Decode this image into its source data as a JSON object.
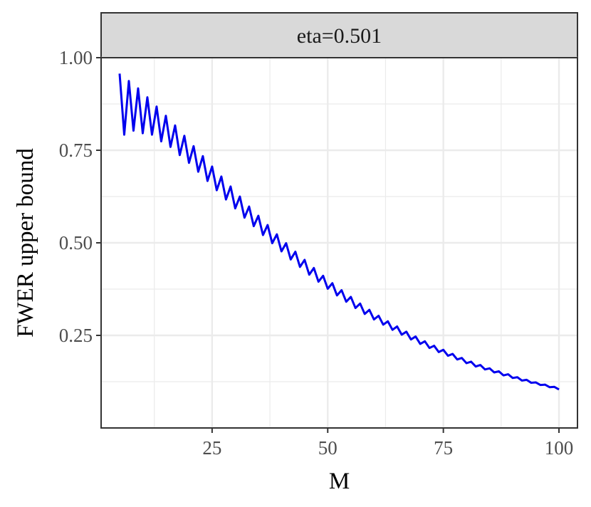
{
  "chart_data": {
    "type": "line",
    "facet_label": "eta=0.501",
    "xlabel": "M",
    "ylabel": "FWER upper bound",
    "xlim": [
      1,
      104
    ],
    "ylim": [
      0.0,
      1.0
    ],
    "x_ticks": [
      25,
      50,
      75,
      100
    ],
    "x_tick_labels": [
      "25",
      "50",
      "75",
      "100"
    ],
    "y_ticks": [
      0.25,
      0.5,
      0.75,
      1.0
    ],
    "y_tick_labels": [
      "0.25",
      "0.50",
      "0.75",
      "1.00"
    ],
    "grid": true,
    "series": [
      {
        "color": "#0000ee",
        "x": [
          5,
          6,
          7,
          8,
          9,
          10,
          11,
          12,
          13,
          14,
          15,
          16,
          17,
          18,
          19,
          20,
          21,
          22,
          23,
          24,
          25,
          26,
          27,
          28,
          29,
          30,
          31,
          32,
          33,
          34,
          35,
          36,
          37,
          38,
          39,
          40,
          41,
          42,
          43,
          44,
          45,
          46,
          47,
          48,
          49,
          50,
          51,
          52,
          53,
          54,
          55,
          56,
          57,
          58,
          59,
          60,
          61,
          62,
          63,
          64,
          65,
          66,
          67,
          68,
          69,
          70,
          71,
          72,
          73,
          74,
          75,
          76,
          77,
          78,
          79,
          80,
          81,
          82,
          83,
          84,
          85,
          86,
          87,
          88,
          89,
          90,
          91,
          92,
          93,
          94,
          95,
          96,
          97,
          98,
          99,
          100
        ],
        "y": [
          0.957,
          0.792,
          0.937,
          0.803,
          0.917,
          0.796,
          0.893,
          0.792,
          0.868,
          0.774,
          0.843,
          0.759,
          0.817,
          0.737,
          0.789,
          0.716,
          0.761,
          0.692,
          0.734,
          0.667,
          0.706,
          0.642,
          0.679,
          0.617,
          0.652,
          0.593,
          0.625,
          0.568,
          0.598,
          0.545,
          0.573,
          0.521,
          0.548,
          0.499,
          0.523,
          0.477,
          0.499,
          0.455,
          0.476,
          0.435,
          0.454,
          0.414,
          0.432,
          0.395,
          0.411,
          0.376,
          0.391,
          0.358,
          0.372,
          0.341,
          0.354,
          0.324,
          0.336,
          0.308,
          0.319,
          0.293,
          0.303,
          0.279,
          0.288,
          0.265,
          0.274,
          0.252,
          0.26,
          0.239,
          0.247,
          0.227,
          0.234,
          0.216,
          0.222,
          0.205,
          0.211,
          0.195,
          0.2,
          0.185,
          0.189,
          0.175,
          0.179,
          0.166,
          0.17,
          0.158,
          0.161,
          0.15,
          0.153,
          0.142,
          0.145,
          0.135,
          0.137,
          0.128,
          0.13,
          0.122,
          0.123,
          0.116,
          0.117,
          0.11,
          0.111,
          0.104
        ]
      }
    ]
  }
}
